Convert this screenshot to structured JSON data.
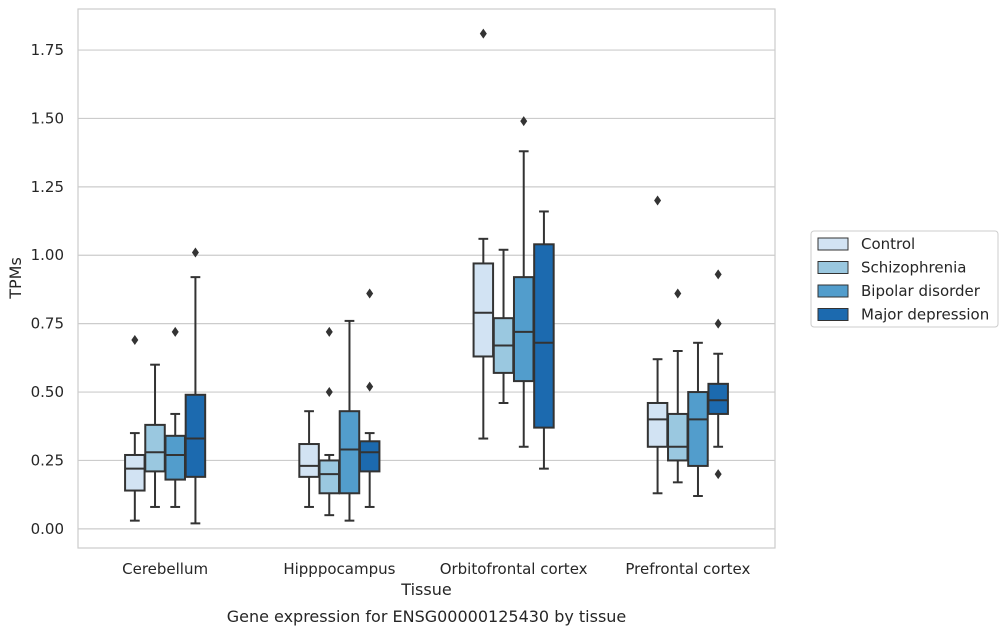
{
  "chart_data": {
    "type": "box",
    "xlabel": "Tissue",
    "ylabel": "TPMs",
    "caption": "Gene expression for ENSG00000125430 by tissue",
    "ylim": [
      -0.07,
      1.9
    ],
    "yticks": [
      0.0,
      0.25,
      0.5,
      0.75,
      1.0,
      1.25,
      1.5,
      1.75
    ],
    "ytick_labels": [
      "0.00",
      "0.25",
      "0.50",
      "0.75",
      "1.00",
      "1.25",
      "1.50",
      "1.75"
    ],
    "grid": "horizontal",
    "legend_position": "right",
    "categories": [
      "Cerebellum",
      "Hipppocampus",
      "Orbitofrontal cortex",
      "Prefrontal cortex"
    ],
    "series": [
      {
        "name": "Control",
        "color": "#d2e3f3",
        "boxes": [
          {
            "whislo": 0.03,
            "q1": 0.14,
            "med": 0.22,
            "q3": 0.27,
            "whishi": 0.35,
            "fliers": [
              0.69
            ]
          },
          {
            "whislo": 0.08,
            "q1": 0.19,
            "med": 0.23,
            "q3": 0.31,
            "whishi": 0.43,
            "fliers": []
          },
          {
            "whislo": 0.33,
            "q1": 0.63,
            "med": 0.79,
            "q3": 0.97,
            "whishi": 1.06,
            "fliers": [
              1.81
            ]
          },
          {
            "whislo": 0.13,
            "q1": 0.3,
            "med": 0.4,
            "q3": 0.46,
            "whishi": 0.62,
            "fliers": [
              1.2
            ]
          }
        ]
      },
      {
        "name": "Schizophrenia",
        "color": "#9ac8e0",
        "boxes": [
          {
            "whislo": 0.08,
            "q1": 0.21,
            "med": 0.28,
            "q3": 0.38,
            "whishi": 0.6,
            "fliers": []
          },
          {
            "whislo": 0.05,
            "q1": 0.13,
            "med": 0.2,
            "q3": 0.25,
            "whishi": 0.27,
            "fliers": [
              0.72,
              0.5
            ]
          },
          {
            "whislo": 0.46,
            "q1": 0.57,
            "med": 0.67,
            "q3": 0.77,
            "whishi": 1.02,
            "fliers": []
          },
          {
            "whislo": 0.17,
            "q1": 0.25,
            "med": 0.3,
            "q3": 0.42,
            "whishi": 0.65,
            "fliers": [
              0.86
            ]
          }
        ]
      },
      {
        "name": "Bipolar disorder",
        "color": "#529dcc",
        "boxes": [
          {
            "whislo": 0.08,
            "q1": 0.18,
            "med": 0.27,
            "q3": 0.34,
            "whishi": 0.42,
            "fliers": [
              0.72
            ]
          },
          {
            "whislo": 0.03,
            "q1": 0.13,
            "med": 0.29,
            "q3": 0.43,
            "whishi": 0.76,
            "fliers": []
          },
          {
            "whislo": 0.3,
            "q1": 0.54,
            "med": 0.72,
            "q3": 0.92,
            "whishi": 1.38,
            "fliers": [
              1.49
            ]
          },
          {
            "whislo": 0.12,
            "q1": 0.23,
            "med": 0.4,
            "q3": 0.5,
            "whishi": 0.68,
            "fliers": []
          }
        ]
      },
      {
        "name": "Major depression",
        "color": "#1c6aaf",
        "boxes": [
          {
            "whislo": 0.02,
            "q1": 0.19,
            "med": 0.33,
            "q3": 0.49,
            "whishi": 0.92,
            "fliers": [
              1.01
            ]
          },
          {
            "whislo": 0.08,
            "q1": 0.21,
            "med": 0.28,
            "q3": 0.32,
            "whishi": 0.35,
            "fliers": [
              0.86,
              0.52
            ]
          },
          {
            "whislo": 0.22,
            "q1": 0.37,
            "med": 0.68,
            "q3": 1.04,
            "whishi": 1.16,
            "fliers": []
          },
          {
            "whislo": 0.3,
            "q1": 0.42,
            "med": 0.47,
            "q3": 0.53,
            "whishi": 0.64,
            "fliers": [
              0.93,
              0.75,
              0.2
            ]
          }
        ]
      }
    ]
  },
  "style": {
    "grid_color": "#cccccc",
    "spine_color": "#cccccc",
    "line_color": "#333333",
    "text_color": "#262626"
  }
}
